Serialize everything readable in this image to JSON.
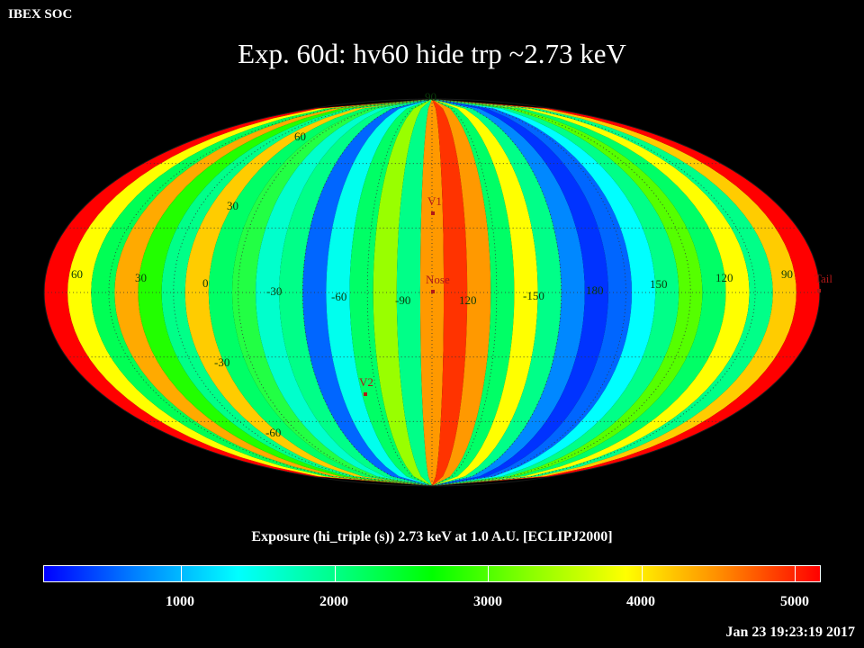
{
  "header": {
    "corner_label": "IBEX SOC",
    "title": "Exp.   60d: hv60 hide trp ~2.73 keV"
  },
  "map": {
    "projection": "aitoff (all-sky, ecliptic J2000)",
    "longitude_labels": [
      "60",
      "30",
      "0",
      "-30",
      "-60",
      "-90",
      "120",
      "-150",
      "180",
      "150",
      "120",
      "90"
    ],
    "latitude_labels": [
      "60",
      "30",
      "-30",
      "-60",
      "90"
    ],
    "markers": [
      {
        "id": "V1",
        "label": "V1"
      },
      {
        "id": "Nose",
        "label": "Nose"
      },
      {
        "id": "V2",
        "label": "V2"
      },
      {
        "id": "Tail",
        "label": "Tail"
      }
    ],
    "pole_label": "90"
  },
  "colorbar": {
    "title": "Exposure (hi_triple (s))  2.73 keV at 1.0 A.U. [ECLIPJ2000]",
    "tick_labels": [
      "1000",
      "2000",
      "3000",
      "4000",
      "5000"
    ],
    "range": [
      0,
      5200
    ],
    "colors": [
      "#0000ff",
      "#0088ff",
      "#00ffff",
      "#00ff88",
      "#00ff00",
      "#88ff00",
      "#ffff00",
      "#ff8800",
      "#ff0000"
    ]
  },
  "footer": {
    "timestamp": "Jan 23 19:23:19 2017"
  }
}
